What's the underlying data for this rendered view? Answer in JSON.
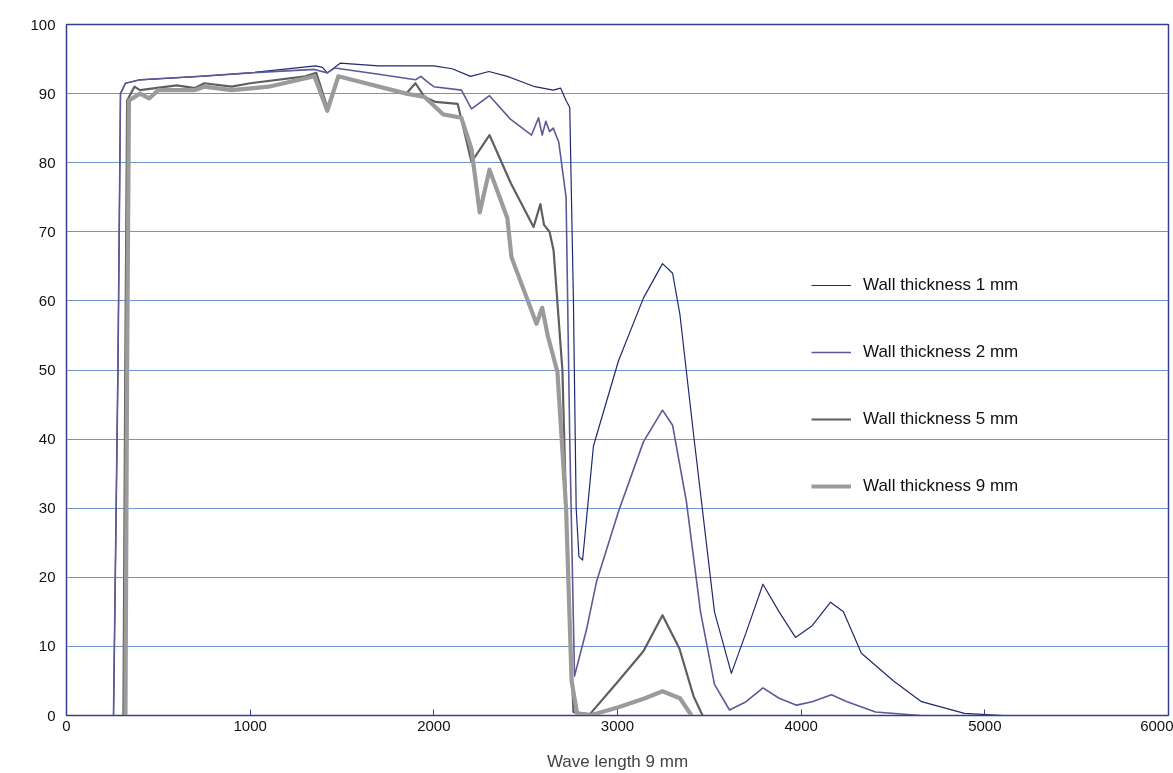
{
  "chart_data": {
    "type": "line",
    "xlabel": "Wave length 9 mm",
    "xlim": [
      0,
      6000
    ],
    "ylim": [
      0,
      100
    ],
    "xticks": [
      0,
      1000,
      2000,
      3000,
      4000,
      5000,
      6000
    ],
    "yticks": [
      0,
      10,
      20,
      30,
      40,
      50,
      60,
      70,
      80,
      90,
      100
    ],
    "grid": "y",
    "legend": "right",
    "marker": "none",
    "line_style": "solid",
    "series": [
      {
        "name": "Wall thickness 1 mm",
        "color": "#1f2a6e",
        "x": [
          256,
          280,
          294,
          321,
          400,
          730,
          1000,
          1356,
          1394,
          1420,
          1490,
          1700,
          2000,
          2100,
          2200,
          2300,
          2400,
          2550,
          2650,
          2690,
          2720,
          2740,
          2760,
          2775,
          2790,
          2810,
          2869,
          3005,
          3141,
          3245,
          3300,
          3340,
          3414,
          3528,
          3620,
          3700,
          3792,
          3880,
          3969,
          4060,
          4160,
          4230,
          4328,
          4503,
          4655,
          4889,
          5100
        ],
        "values": [
          0,
          50,
          90,
          91.5,
          92,
          92.5,
          93,
          94,
          93.8,
          93,
          94.4,
          94,
          94,
          93.6,
          92.5,
          93.2,
          92.5,
          91,
          90.5,
          90.8,
          89,
          88,
          60,
          30,
          23,
          22.5,
          39,
          51.3,
          60.4,
          65.4,
          64,
          58,
          40.7,
          15,
          6.1,
          12,
          19,
          15,
          11.3,
          13,
          16.4,
          15,
          9,
          5,
          2,
          0.3,
          0
        ]
      },
      {
        "name": "Wall thickness 2 mm",
        "color": "#5c5a96",
        "x": [
          256,
          280,
          294,
          321,
          400,
          730,
          1000,
          1350,
          1420,
          1460,
          1700,
          1900,
          1930,
          1960,
          2000,
          2150,
          2205,
          2303,
          2417,
          2532,
          2570,
          2590,
          2610,
          2630,
          2650,
          2680,
          2720,
          2740,
          2766,
          2831,
          2886,
          3005,
          3141,
          3245,
          3300,
          3375,
          3452,
          3528,
          3610,
          3700,
          3792,
          3880,
          3975,
          4060,
          4165,
          4250,
          4405,
          4650
        ],
        "values": [
          0,
          50,
          90,
          91.5,
          92,
          92.5,
          93,
          93.5,
          93,
          93.7,
          92.8,
          92,
          92.5,
          91.8,
          91,
          90.5,
          87.8,
          89.7,
          86.3,
          84,
          86.5,
          84,
          86,
          84.5,
          85,
          83,
          75,
          40,
          5.7,
          12.4,
          19.4,
          29.5,
          39.6,
          44.2,
          42,
          31,
          15,
          4.5,
          0.8,
          2,
          4,
          2.5,
          1.5,
          2,
          3,
          2,
          0.5,
          0
        ]
      },
      {
        "name": "Wall thickness 5 mm",
        "color": "#5f5f5f",
        "x": [
          310,
          320,
          330,
          370,
          400,
          600,
          700,
          750,
          900,
          1000,
          1300,
          1360,
          1420,
          1480,
          1850,
          1900,
          1950,
          2009,
          2130,
          2205,
          2303,
          2420,
          2543,
          2580,
          2600,
          2630,
          2652,
          2700,
          2730,
          2760,
          2850,
          3005,
          3141,
          3245,
          3337,
          3414,
          3463
        ],
        "values": [
          0,
          50,
          89,
          91,
          90.5,
          91.2,
          90.8,
          91.5,
          91,
          91.5,
          92.5,
          93,
          88,
          92.5,
          90,
          91.5,
          89.5,
          88.8,
          88.5,
          80.1,
          84,
          77,
          70.7,
          74,
          71,
          70,
          67.3,
          50,
          20,
          0.5,
          0.2,
          5,
          9.3,
          14.5,
          9.7,
          2.8,
          0
        ]
      },
      {
        "name": "Wall thickness 9 mm",
        "color": "#9b9b9b",
        "x": [
          321,
          330,
          340,
          400,
          450,
          500,
          700,
          750,
          900,
          1100,
          1350,
          1420,
          1480,
          1850,
          1950,
          2050,
          2150,
          2205,
          2250,
          2303,
          2400,
          2423,
          2559,
          2590,
          2620,
          2673,
          2720,
          2750,
          2780,
          2850,
          3005,
          3150,
          3245,
          3340,
          3403
        ],
        "values": [
          0,
          50,
          89,
          90,
          89.3,
          90.5,
          90.5,
          91,
          90.5,
          91,
          92.5,
          87.5,
          92.5,
          90,
          89.5,
          87,
          86.5,
          82,
          72.8,
          79,
          72,
          66.3,
          56.7,
          59,
          55,
          49.7,
          30,
          5,
          0.3,
          0,
          1.2,
          2.5,
          3.5,
          2.5,
          0
        ]
      }
    ]
  }
}
